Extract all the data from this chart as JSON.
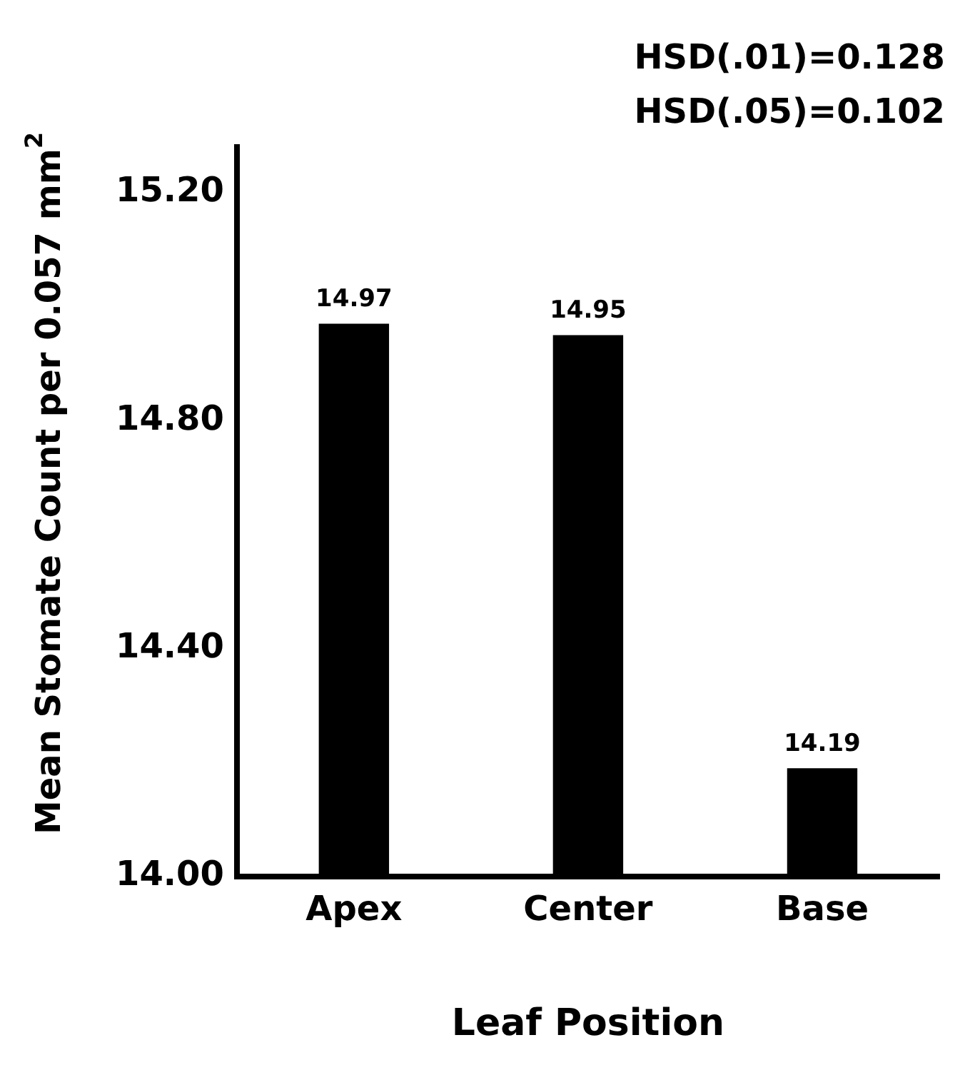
{
  "chart_data": {
    "type": "bar",
    "xlabel": "Leaf Position",
    "ylabel": "Mean Stomate Count per 0.057 mm$^{2}$",
    "categories": [
      "Apex",
      "Center",
      "Base"
    ],
    "values": [
      14.97,
      14.95,
      14.19
    ],
    "color": "#000000",
    "data_labels": true,
    "ylim": [
      14,
      15.28
    ],
    "yticks": [
      {
        "value": 14,
        "label": "14.00"
      },
      {
        "value": 14.4,
        "label": "14.40"
      },
      {
        "value": 14.8,
        "label": "14.80"
      },
      {
        "value": 15.2,
        "label": "15.20"
      }
    ],
    "grid": false,
    "legend": false,
    "annotations": [
      "HSD(.01)=0.128",
      "HSD(.05)=0.102"
    ]
  }
}
